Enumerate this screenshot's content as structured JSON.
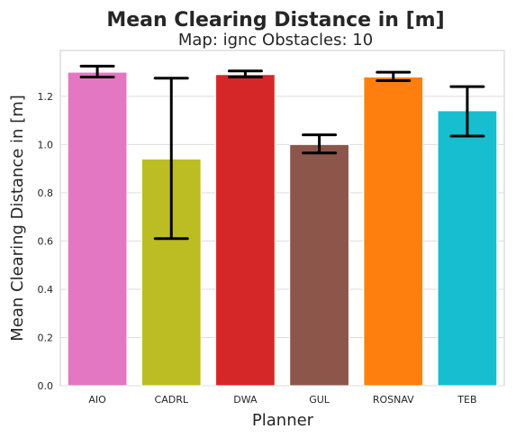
{
  "chart_data": {
    "type": "bar",
    "title": "Mean Clearing Distance in [m]",
    "subtitle": "Map: ignc Obstacles: 10",
    "xlabel": "Planner",
    "ylabel": "Mean Clearing Distance in [m]",
    "categories": [
      "AIO",
      "CADRL",
      "DWA",
      "GUL",
      "ROSNAV",
      "TEB"
    ],
    "values": [
      1.3,
      0.94,
      1.29,
      1.0,
      1.28,
      1.14
    ],
    "error_low": [
      1.28,
      0.61,
      1.28,
      0.965,
      1.265,
      1.035
    ],
    "error_high": [
      1.325,
      1.275,
      1.305,
      1.04,
      1.3,
      1.24
    ],
    "colors": [
      "#e377c2",
      "#bcbd22",
      "#d62728",
      "#8c564b",
      "#ff7f0e",
      "#17becf"
    ],
    "ylim": [
      0,
      1.39
    ],
    "yticks": [
      "0.0",
      "0.2",
      "0.4",
      "0.6",
      "0.8",
      "1.0",
      "1.2"
    ],
    "grid": true,
    "legend": "none"
  }
}
